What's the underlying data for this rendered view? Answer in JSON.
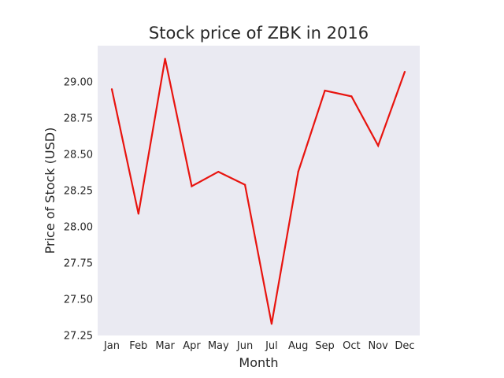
{
  "chart_data": {
    "type": "line",
    "title": "Stock price of ZBK in 2016",
    "xlabel": "Month",
    "ylabel": "Price of Stock (USD)",
    "categories": [
      "Jan",
      "Feb",
      "Mar",
      "Apr",
      "May",
      "Jun",
      "Jul",
      "Aug",
      "Sep",
      "Oct",
      "Nov",
      "Dec"
    ],
    "series": [
      {
        "values": [
          28.95,
          28.09,
          29.16,
          28.28,
          28.38,
          28.29,
          27.33,
          28.38,
          28.94,
          28.9,
          28.56,
          29.07
        ]
      }
    ],
    "ylim": [
      27.25,
      29.25
    ],
    "yticks": [
      "27.25",
      "27.50",
      "27.75",
      "28.00",
      "28.25",
      "28.50",
      "28.75",
      "29.00"
    ],
    "grid": false,
    "legend": "none",
    "colors": {
      "line": "#e8140f",
      "plot_background": "#eaeaf2",
      "text": "#262626"
    }
  }
}
